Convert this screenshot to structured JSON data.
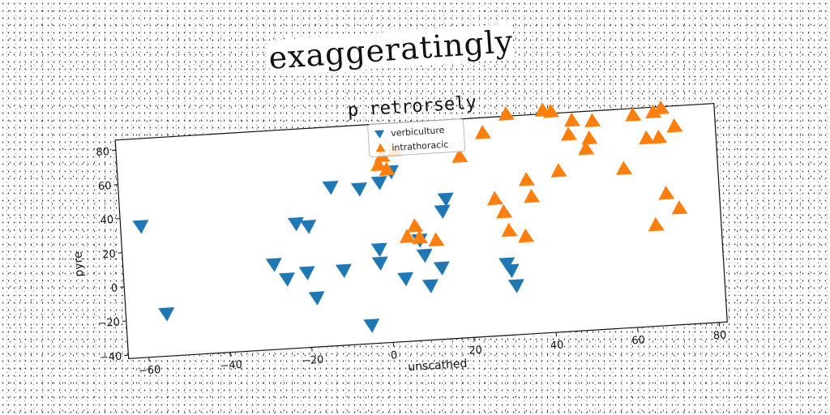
{
  "overlay_title": "exaggeratingly",
  "chart_data": {
    "type": "scatter",
    "title": "p retrorsely",
    "xlabel": "unscathed",
    "ylabel": "pyre",
    "xlim": [
      -65,
      82
    ],
    "ylim": [
      -42,
      86
    ],
    "xticks": [
      -60,
      -40,
      -20,
      0,
      20,
      40,
      60,
      80
    ],
    "yticks": [
      -40,
      -20,
      0,
      20,
      40,
      60,
      80
    ],
    "grid": false,
    "legend_position": "top-center",
    "series": [
      {
        "name": "verbiculture",
        "marker": "triangle-down",
        "color": "#1f77b4",
        "points": [
          [
            -60,
            35
          ],
          [
            -55,
            -17
          ],
          [
            -28,
            8
          ],
          [
            -25,
            -1
          ],
          [
            -22,
            31
          ],
          [
            -20,
            2
          ],
          [
            -19,
            29
          ],
          [
            -18,
            -13
          ],
          [
            -13,
            51
          ],
          [
            -11,
            2
          ],
          [
            -6,
            49
          ],
          [
            -5,
            -31
          ],
          [
            -2,
            13
          ],
          [
            -2,
            5
          ],
          [
            -1,
            52
          ],
          [
            2,
            58
          ],
          [
            4,
            -5
          ],
          [
            8,
            17
          ],
          [
            9,
            8
          ],
          [
            10,
            -10
          ],
          [
            13,
            0
          ],
          [
            14,
            33
          ],
          [
            15,
            40
          ],
          [
            29,
            0
          ],
          [
            30,
            -4
          ],
          [
            31,
            -13
          ]
        ]
      },
      {
        "name": "intrathoracic",
        "marker": "triangle-up",
        "color": "#ff7f0e",
        "points": [
          [
            -1,
            62
          ],
          [
            0,
            67
          ],
          [
            1,
            59
          ],
          [
            3,
            70
          ],
          [
            5,
            19
          ],
          [
            7,
            25
          ],
          [
            8,
            18
          ],
          [
            12,
            16
          ],
          [
            19,
            64
          ],
          [
            25,
            77
          ],
          [
            27,
            38
          ],
          [
            29,
            30
          ],
          [
            30,
            19
          ],
          [
            31,
            87
          ],
          [
            34,
            15
          ],
          [
            35,
            48
          ],
          [
            36,
            38
          ],
          [
            40,
            88
          ],
          [
            42,
            87
          ],
          [
            43,
            52
          ],
          [
            46,
            73
          ],
          [
            47,
            81
          ],
          [
            50,
            64
          ],
          [
            51,
            70
          ],
          [
            52,
            80
          ],
          [
            59,
            51
          ],
          [
            62,
            82
          ],
          [
            65,
            68
          ],
          [
            66,
            17
          ],
          [
            67,
            83
          ],
          [
            68,
            68
          ],
          [
            69,
            35
          ],
          [
            69,
            85
          ],
          [
            72,
            26
          ],
          [
            72,
            74
          ]
        ]
      }
    ]
  }
}
